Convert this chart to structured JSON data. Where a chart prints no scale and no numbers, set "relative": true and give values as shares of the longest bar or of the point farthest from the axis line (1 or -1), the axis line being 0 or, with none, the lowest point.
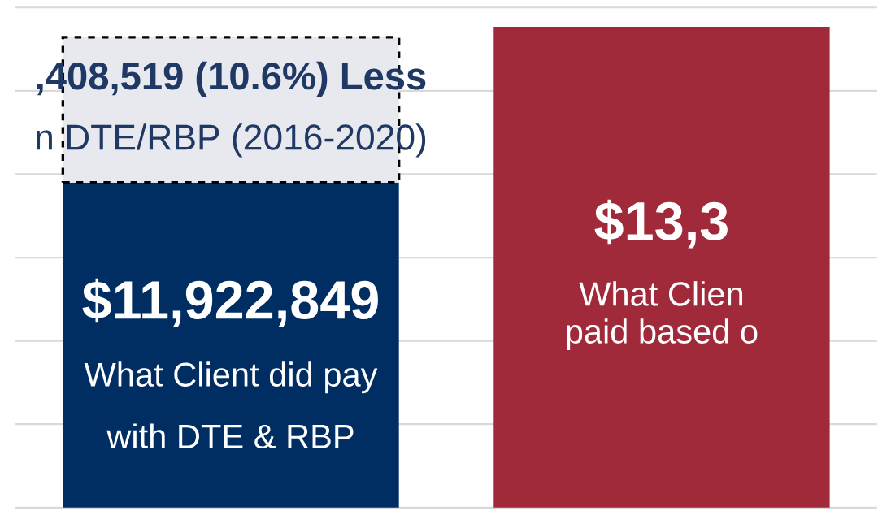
{
  "chart_data": {
    "type": "bar",
    "relative": true,
    "stacked": true,
    "grid": "y",
    "categories": [
      null,
      null
    ],
    "series": [
      {
        "colors": [
          "#002d62",
          "#a12a3a"
        ],
        "values": [
          0.676,
          1.0
        ]
      },
      {
        "color": "#e7e9ee",
        "values": [
          0.302,
          null
        ],
        "line_style": "dashed"
      }
    ],
    "annotations": [
      ",408,519 (10.6%) Less",
      "n DTE/RBP (2016-2020)",
      "$11,922,849",
      "What Client did pay",
      "with DTE & RBP",
      "$13,3",
      "What Clien",
      "paid based o"
    ]
  }
}
